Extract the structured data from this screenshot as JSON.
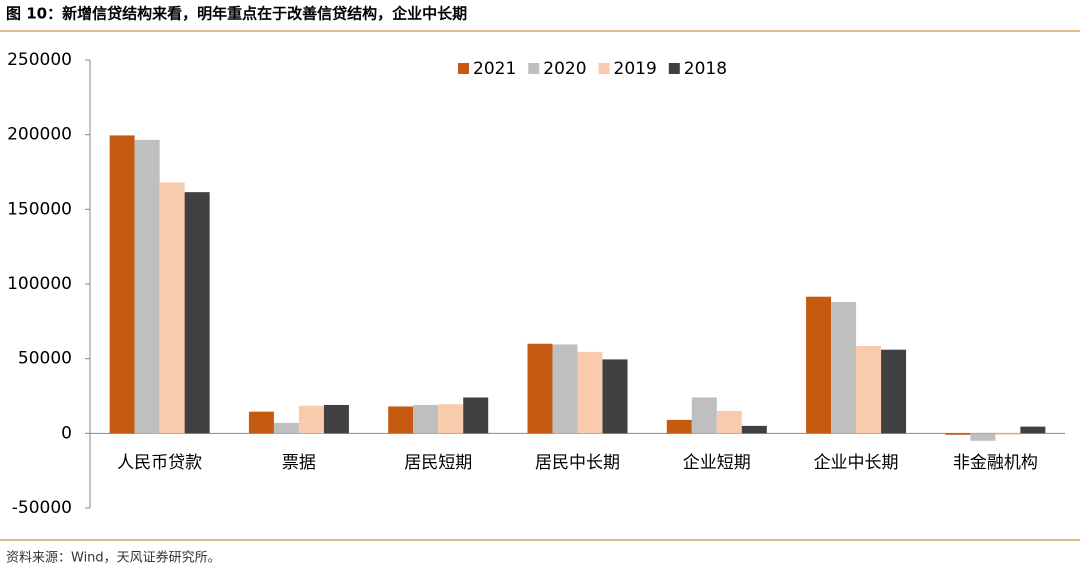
{
  "chart_data": {
    "type": "bar",
    "title": "图 10：新增信贷结构来看，明年重点在于改善信贷结构，企业中长期",
    "source": "资料来源：Wind，天风证券研究所。",
    "categories": [
      "人民币贷款",
      "票据",
      "居民短期",
      "居民中长期",
      "企业短期",
      "企业中长期",
      "非金融机构"
    ],
    "series": [
      {
        "name": "2021",
        "color": "#C55A11",
        "values": [
          199500,
          14500,
          18000,
          60000,
          9000,
          91500,
          -1000
        ]
      },
      {
        "name": "2020",
        "color": "#BFBFBF",
        "values": [
          196500,
          7000,
          19000,
          59500,
          24000,
          88000,
          -5000
        ]
      },
      {
        "name": "2019",
        "color": "#F8CBAD",
        "values": [
          168000,
          18500,
          19500,
          54500,
          15000,
          58500,
          -1000
        ]
      },
      {
        "name": "2018",
        "color": "#404040",
        "values": [
          161500,
          19000,
          24000,
          49500,
          5000,
          56000,
          4500
        ]
      }
    ],
    "ylim": [
      -50000,
      250000
    ],
    "yticks": [
      -50000,
      0,
      50000,
      100000,
      150000,
      200000,
      250000
    ],
    "legend": "top",
    "grid": false
  }
}
